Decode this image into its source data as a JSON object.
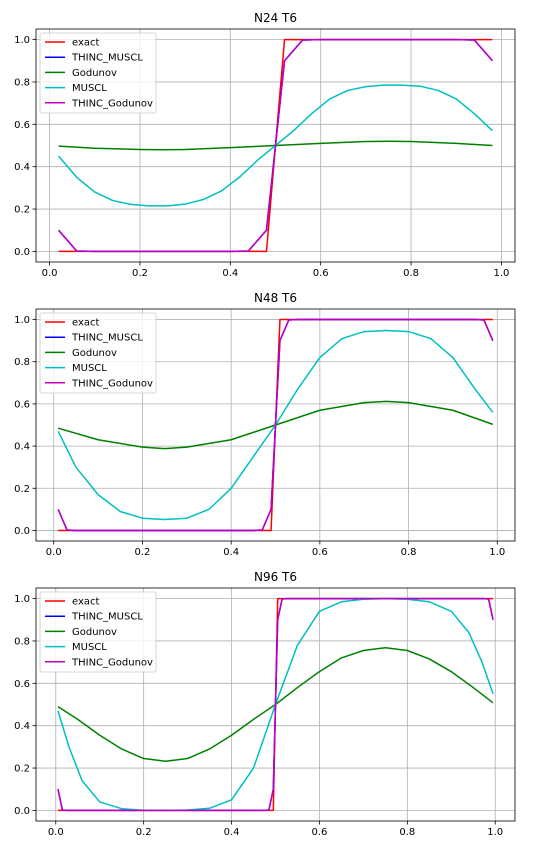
{
  "series_colors": {
    "exact": "#ff0000",
    "THINC_MUSCL": "#0000ff",
    "Godunov": "#008000",
    "MUSCL": "#00bfbf",
    "THINC_Godunov": "#bf00bf"
  },
  "chart_data": [
    {
      "type": "line",
      "title": "N24 T6",
      "xlabel": "",
      "ylabel": "",
      "xlim": [
        -0.03,
        1.03
      ],
      "ylim": [
        -0.05,
        1.05
      ],
      "xticks": [
        0.0,
        0.2,
        0.4,
        0.6,
        0.8,
        1.0
      ],
      "xtick_labels": [
        "0.0",
        "0.2",
        "0.4",
        "0.6",
        "0.8",
        "1.0"
      ],
      "yticks": [
        0.0,
        0.2,
        0.4,
        0.6,
        0.8,
        1.0
      ],
      "ytick_labels": [
        "0.0",
        "0.2",
        "0.4",
        "0.6",
        "0.8",
        "1.0"
      ],
      "grid": true,
      "legend": "upper-left",
      "series": [
        {
          "name": "exact",
          "x": [
            0.02,
            0.48,
            0.52,
            0.98
          ],
          "y": [
            0,
            0,
            1,
            1
          ]
        },
        {
          "name": "THINC_MUSCL",
          "x": [
            0.02,
            0.06,
            0.1,
            0.2,
            0.3,
            0.4,
            0.44,
            0.48,
            0.52,
            0.56,
            0.6,
            0.7,
            0.8,
            0.9,
            0.94,
            0.98
          ],
          "y": [
            0.1,
            0.002,
            0,
            0,
            0,
            0,
            0.002,
            0.1,
            0.9,
            0.998,
            1,
            1,
            1,
            1,
            0.998,
            0.9
          ]
        },
        {
          "name": "Godunov",
          "x": [
            0.02,
            0.1,
            0.2,
            0.25,
            0.3,
            0.4,
            0.5,
            0.6,
            0.7,
            0.75,
            0.8,
            0.9,
            0.98
          ],
          "y": [
            0.497,
            0.487,
            0.481,
            0.48,
            0.481,
            0.49,
            0.5,
            0.51,
            0.519,
            0.52,
            0.519,
            0.51,
            0.5
          ]
        },
        {
          "name": "MUSCL",
          "x": [
            0.02,
            0.06,
            0.1,
            0.14,
            0.18,
            0.22,
            0.26,
            0.3,
            0.34,
            0.38,
            0.42,
            0.46,
            0.5,
            0.54,
            0.58,
            0.62,
            0.66,
            0.7,
            0.74,
            0.78,
            0.82,
            0.86,
            0.9,
            0.94,
            0.98
          ],
          "y": [
            0.45,
            0.35,
            0.28,
            0.24,
            0.222,
            0.215,
            0.215,
            0.223,
            0.245,
            0.285,
            0.35,
            0.43,
            0.5,
            0.57,
            0.65,
            0.72,
            0.76,
            0.778,
            0.785,
            0.785,
            0.78,
            0.76,
            0.72,
            0.65,
            0.57
          ]
        },
        {
          "name": "THINC_Godunov",
          "x": [
            0.02,
            0.06,
            0.1,
            0.2,
            0.3,
            0.4,
            0.44,
            0.48,
            0.52,
            0.56,
            0.6,
            0.7,
            0.8,
            0.9,
            0.94,
            0.98
          ],
          "y": [
            0.1,
            0.002,
            0,
            0,
            0,
            0,
            0.002,
            0.1,
            0.9,
            0.998,
            1,
            1,
            1,
            1,
            0.998,
            0.9
          ]
        }
      ]
    },
    {
      "type": "line",
      "title": "N48 T6",
      "xlabel": "",
      "ylabel": "",
      "xlim": [
        -0.04,
        1.04
      ],
      "ylim": [
        -0.05,
        1.05
      ],
      "xticks": [
        0.0,
        0.2,
        0.4,
        0.6,
        0.8,
        1.0
      ],
      "xtick_labels": [
        "0.0",
        "0.2",
        "0.4",
        "0.6",
        "0.8",
        "1.0"
      ],
      "yticks": [
        0.0,
        0.2,
        0.4,
        0.6,
        0.8,
        1.0
      ],
      "ytick_labels": [
        "0.0",
        "0.2",
        "0.4",
        "0.6",
        "0.8",
        "1.0"
      ],
      "grid": true,
      "legend": "upper-left",
      "series": [
        {
          "name": "exact",
          "x": [
            0.01,
            0.49,
            0.51,
            0.99
          ],
          "y": [
            0,
            0,
            1,
            1
          ]
        },
        {
          "name": "THINC_MUSCL",
          "x": [
            0.01,
            0.03,
            0.05,
            0.2,
            0.4,
            0.45,
            0.47,
            0.49,
            0.51,
            0.53,
            0.55,
            0.7,
            0.9,
            0.95,
            0.97,
            0.99
          ],
          "y": [
            0.1,
            0.002,
            0,
            0,
            0,
            0,
            0.002,
            0.1,
            0.9,
            0.998,
            1,
            1,
            1,
            1,
            0.998,
            0.9
          ]
        },
        {
          "name": "Godunov",
          "x": [
            0.01,
            0.1,
            0.2,
            0.25,
            0.3,
            0.4,
            0.5,
            0.6,
            0.7,
            0.75,
            0.8,
            0.9,
            0.99
          ],
          "y": [
            0.485,
            0.43,
            0.395,
            0.388,
            0.395,
            0.43,
            0.5,
            0.57,
            0.606,
            0.612,
            0.606,
            0.57,
            0.503
          ]
        },
        {
          "name": "MUSCL",
          "x": [
            0.01,
            0.05,
            0.1,
            0.15,
            0.2,
            0.25,
            0.3,
            0.35,
            0.4,
            0.45,
            0.5,
            0.55,
            0.6,
            0.65,
            0.7,
            0.75,
            0.8,
            0.85,
            0.9,
            0.95,
            0.99
          ],
          "y": [
            0.47,
            0.3,
            0.17,
            0.09,
            0.058,
            0.052,
            0.058,
            0.1,
            0.2,
            0.35,
            0.5,
            0.67,
            0.82,
            0.91,
            0.943,
            0.948,
            0.943,
            0.91,
            0.82,
            0.67,
            0.56
          ]
        },
        {
          "name": "THINC_Godunov",
          "x": [
            0.01,
            0.03,
            0.05,
            0.2,
            0.4,
            0.45,
            0.47,
            0.49,
            0.51,
            0.53,
            0.55,
            0.7,
            0.9,
            0.95,
            0.97,
            0.99
          ],
          "y": [
            0.1,
            0.002,
            0,
            0,
            0,
            0,
            0.002,
            0.1,
            0.9,
            0.998,
            1,
            1,
            1,
            1,
            0.998,
            0.9
          ]
        }
      ]
    },
    {
      "type": "line",
      "title": "N96 T6",
      "xlabel": "",
      "ylabel": "",
      "xlim": [
        -0.045,
        1.045
      ],
      "ylim": [
        -0.05,
        1.05
      ],
      "xticks": [
        0.0,
        0.2,
        0.4,
        0.6,
        0.8,
        1.0
      ],
      "xtick_labels": [
        "0.0",
        "0.2",
        "0.4",
        "0.6",
        "0.8",
        "1.0"
      ],
      "yticks": [
        0.0,
        0.2,
        0.4,
        0.6,
        0.8,
        1.0
      ],
      "ytick_labels": [
        "0.0",
        "0.2",
        "0.4",
        "0.6",
        "0.8",
        "1.0"
      ],
      "grid": true,
      "legend": "upper-left",
      "series": [
        {
          "name": "exact",
          "x": [
            0.005,
            0.495,
            0.505,
            0.995
          ],
          "y": [
            0,
            0,
            1,
            1
          ]
        },
        {
          "name": "THINC_MUSCL",
          "x": [
            0.005,
            0.015,
            0.025,
            0.2,
            0.4,
            0.475,
            0.485,
            0.495,
            0.505,
            0.515,
            0.525,
            0.7,
            0.9,
            0.975,
            0.985,
            0.995
          ],
          "y": [
            0.1,
            0.002,
            0,
            0,
            0,
            0,
            0.002,
            0.1,
            0.9,
            0.998,
            1,
            1,
            1,
            1,
            0.998,
            0.9
          ]
        },
        {
          "name": "Godunov",
          "x": [
            0.005,
            0.05,
            0.1,
            0.15,
            0.2,
            0.25,
            0.3,
            0.35,
            0.4,
            0.45,
            0.5,
            0.55,
            0.6,
            0.65,
            0.7,
            0.75,
            0.8,
            0.85,
            0.9,
            0.95,
            0.995
          ],
          "y": [
            0.49,
            0.43,
            0.355,
            0.29,
            0.245,
            0.232,
            0.245,
            0.29,
            0.355,
            0.43,
            0.5,
            0.58,
            0.655,
            0.72,
            0.755,
            0.768,
            0.755,
            0.715,
            0.655,
            0.58,
            0.508
          ]
        },
        {
          "name": "MUSCL",
          "x": [
            0.005,
            0.03,
            0.06,
            0.1,
            0.15,
            0.2,
            0.25,
            0.3,
            0.35,
            0.4,
            0.45,
            0.5,
            0.55,
            0.6,
            0.65,
            0.7,
            0.75,
            0.8,
            0.85,
            0.9,
            0.94,
            0.97,
            0.995
          ],
          "y": [
            0.47,
            0.3,
            0.14,
            0.04,
            0.008,
            0.001,
            0,
            0.002,
            0.01,
            0.05,
            0.2,
            0.5,
            0.78,
            0.94,
            0.985,
            0.997,
            1,
            0.997,
            0.985,
            0.94,
            0.84,
            0.7,
            0.55
          ]
        },
        {
          "name": "THINC_Godunov",
          "x": [
            0.005,
            0.015,
            0.025,
            0.2,
            0.4,
            0.475,
            0.485,
            0.495,
            0.505,
            0.515,
            0.525,
            0.7,
            0.9,
            0.975,
            0.985,
            0.995
          ],
          "y": [
            0.1,
            0.002,
            0,
            0,
            0,
            0,
            0.002,
            0.1,
            0.9,
            0.998,
            1,
            1,
            1,
            1,
            0.998,
            0.9
          ]
        }
      ]
    }
  ]
}
